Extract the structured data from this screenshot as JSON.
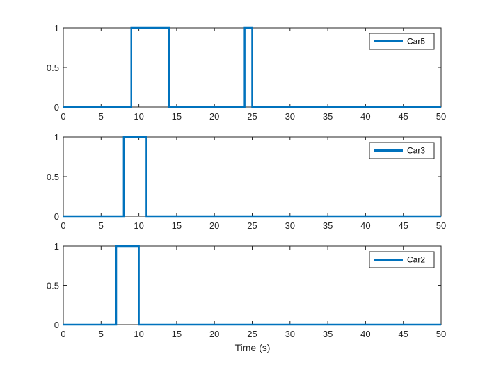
{
  "chart_data": {
    "type": "line",
    "layout": "3 stacked subplots",
    "shared_xlabel": "Time (s)",
    "xlim": [
      0,
      50
    ],
    "ylim": [
      0,
      1
    ],
    "xticks": [
      0,
      5,
      10,
      15,
      20,
      25,
      30,
      35,
      40,
      45,
      50
    ],
    "yticks": [
      0,
      0.5,
      1
    ],
    "ytick_labels": [
      "0",
      "0.5",
      "1"
    ],
    "grid": false,
    "legend_placement": "top-right",
    "line_color": "#0072BD",
    "subplots": [
      {
        "series": [
          {
            "name": "Car5",
            "x": [
              0,
              9,
              9,
              14,
              14,
              24,
              24,
              25,
              25,
              50
            ],
            "y": [
              0,
              0,
              1,
              1,
              0,
              0,
              1,
              1,
              0,
              0
            ]
          }
        ]
      },
      {
        "series": [
          {
            "name": "Car3",
            "x": [
              0,
              8,
              8,
              11,
              11,
              50
            ],
            "y": [
              0,
              0,
              1,
              1,
              0,
              0
            ]
          }
        ]
      },
      {
        "series": [
          {
            "name": "Car2",
            "x": [
              0,
              7,
              7,
              10,
              10,
              50
            ],
            "y": [
              0,
              0,
              1,
              1,
              0,
              0
            ]
          }
        ]
      }
    ]
  }
}
